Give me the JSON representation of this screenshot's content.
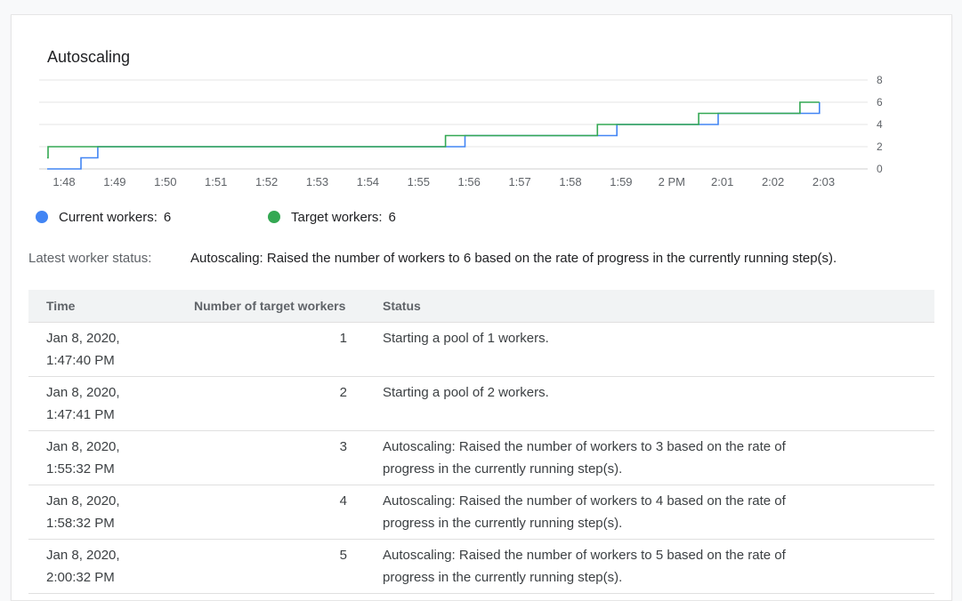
{
  "card": {
    "title": "Autoscaling"
  },
  "chart_data": {
    "type": "line",
    "y_ticks": [
      "8",
      "6",
      "4",
      "2",
      "0"
    ],
    "ylim": [
      0,
      8
    ],
    "x_ticks": [
      "1:48",
      "1:49",
      "1:50",
      "1:51",
      "1:52",
      "1:53",
      "1:54",
      "1:55",
      "1:56",
      "1:57",
      "1:58",
      "1:59",
      "2 PM",
      "2:01",
      "2:02",
      "2:03"
    ],
    "series": [
      {
        "name": "Current workers",
        "color": "#4285f4",
        "step_points": [
          [
            "1:47:40",
            0
          ],
          [
            "1:48:20",
            1
          ],
          [
            "1:48:40",
            2
          ],
          [
            "1:55:55",
            2
          ],
          [
            "1:55:55",
            3
          ],
          [
            "1:58:55",
            3
          ],
          [
            "1:58:55",
            4
          ],
          [
            "2:00:55",
            4
          ],
          [
            "2:00:55",
            5
          ],
          [
            "2:02:55",
            5
          ],
          [
            "2:02:55",
            6
          ]
        ]
      },
      {
        "name": "Target workers",
        "color": "#34a853",
        "step_points": [
          [
            "1:47:40",
            1
          ],
          [
            "1:47:41",
            2
          ],
          [
            "1:55:32",
            2
          ],
          [
            "1:55:32",
            3
          ],
          [
            "1:58:32",
            3
          ],
          [
            "1:58:32",
            4
          ],
          [
            "2:00:32",
            4
          ],
          [
            "2:00:32",
            5
          ],
          [
            "2:02:32",
            5
          ],
          [
            "2:02:32",
            6
          ],
          [
            "2:02:55",
            6
          ]
        ]
      }
    ]
  },
  "legend": {
    "current": {
      "label": "Current workers:",
      "value": "6",
      "color": "#4285f4"
    },
    "target": {
      "label": "Target workers:",
      "value": "6",
      "color": "#34a853"
    }
  },
  "status": {
    "label": "Latest worker status:",
    "text": "Autoscaling: Raised the number of workers to 6 based on the rate of progress in the currently running step(s)."
  },
  "table": {
    "headers": {
      "time": "Time",
      "num": "Number of target workers",
      "status": "Status"
    },
    "rows": [
      {
        "time": "Jan 8, 2020,\n1:47:40 PM",
        "num": "1",
        "status": "Starting a pool of 1 workers."
      },
      {
        "time": "Jan 8, 2020,\n1:47:41 PM",
        "num": "2",
        "status": "Starting a pool of 2 workers."
      },
      {
        "time": "Jan 8, 2020,\n1:55:32 PM",
        "num": "3",
        "status": "Autoscaling: Raised the number of workers to 3 based on the rate of progress in the currently running step(s)."
      },
      {
        "time": "Jan 8, 2020,\n1:58:32 PM",
        "num": "4",
        "status": "Autoscaling: Raised the number of workers to 4 based on the rate of progress in the currently running step(s)."
      },
      {
        "time": "Jan 8, 2020,\n2:00:32 PM",
        "num": "5",
        "status": "Autoscaling: Raised the number of workers to 5 based on the rate of progress in the currently running step(s)."
      }
    ]
  }
}
